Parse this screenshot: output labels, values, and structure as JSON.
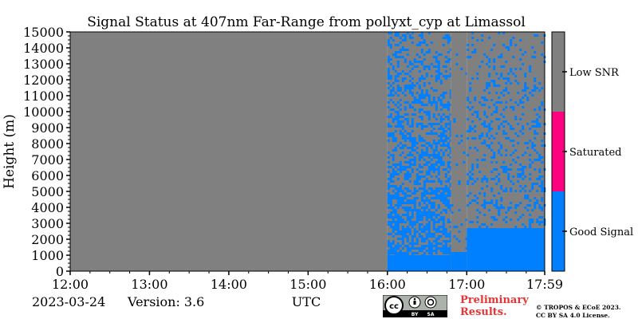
{
  "chart_data": {
    "type": "heatmap",
    "title": "Signal Status at 407nm Far-Range from pollyxt_cyp at Limassol",
    "ylabel": "Height (m)",
    "xlabel": "UTC",
    "x_ticks": [
      "12:00",
      "13:00",
      "14:00",
      "15:00",
      "16:00",
      "17:00",
      "17:59"
    ],
    "y_ticks": [
      "0",
      "1000",
      "2000",
      "3000",
      "4000",
      "5000",
      "6000",
      "7000",
      "8000",
      "9000",
      "10000",
      "11000",
      "12000",
      "13000",
      "14000",
      "15000"
    ],
    "ylim": [
      0,
      15000
    ],
    "xlim_hours": [
      12.0,
      17.983
    ],
    "categories": [
      "Low SNR",
      "Saturated",
      "Good Signal"
    ],
    "colors": {
      "Low SNR": "#808080",
      "Saturated": "#ff0080",
      "Good Signal": "#0080ff"
    },
    "regions": [
      {
        "start": "12:00",
        "end": "16:00",
        "status": "Low SNR",
        "good_signal_below_m": 0,
        "noise_fraction": 0
      },
      {
        "start": "16:00",
        "end": "16:48",
        "status": "Good Signal",
        "good_signal_below_m": 1000,
        "noise_fraction": 0.55
      },
      {
        "start": "16:48",
        "end": "17:00",
        "status": "Good Signal",
        "good_signal_below_m": 1200,
        "noise_fraction": 0.05
      },
      {
        "start": "17:00",
        "end": "17:59",
        "status": "Good Signal",
        "good_signal_below_m": 2700,
        "noise_fraction": 0.25
      }
    ]
  },
  "footer": {
    "date": "2023-03-24",
    "version_label": "Version:",
    "version": "3.6",
    "preliminary_line1": "Preliminary",
    "preliminary_line2": "Results.",
    "copyright_line1": "© TROPOS & ECoE 2023.",
    "copyright_line2": "CC BY SA 4.0 License.",
    "license_badge": "cc-by-sa-badge"
  }
}
